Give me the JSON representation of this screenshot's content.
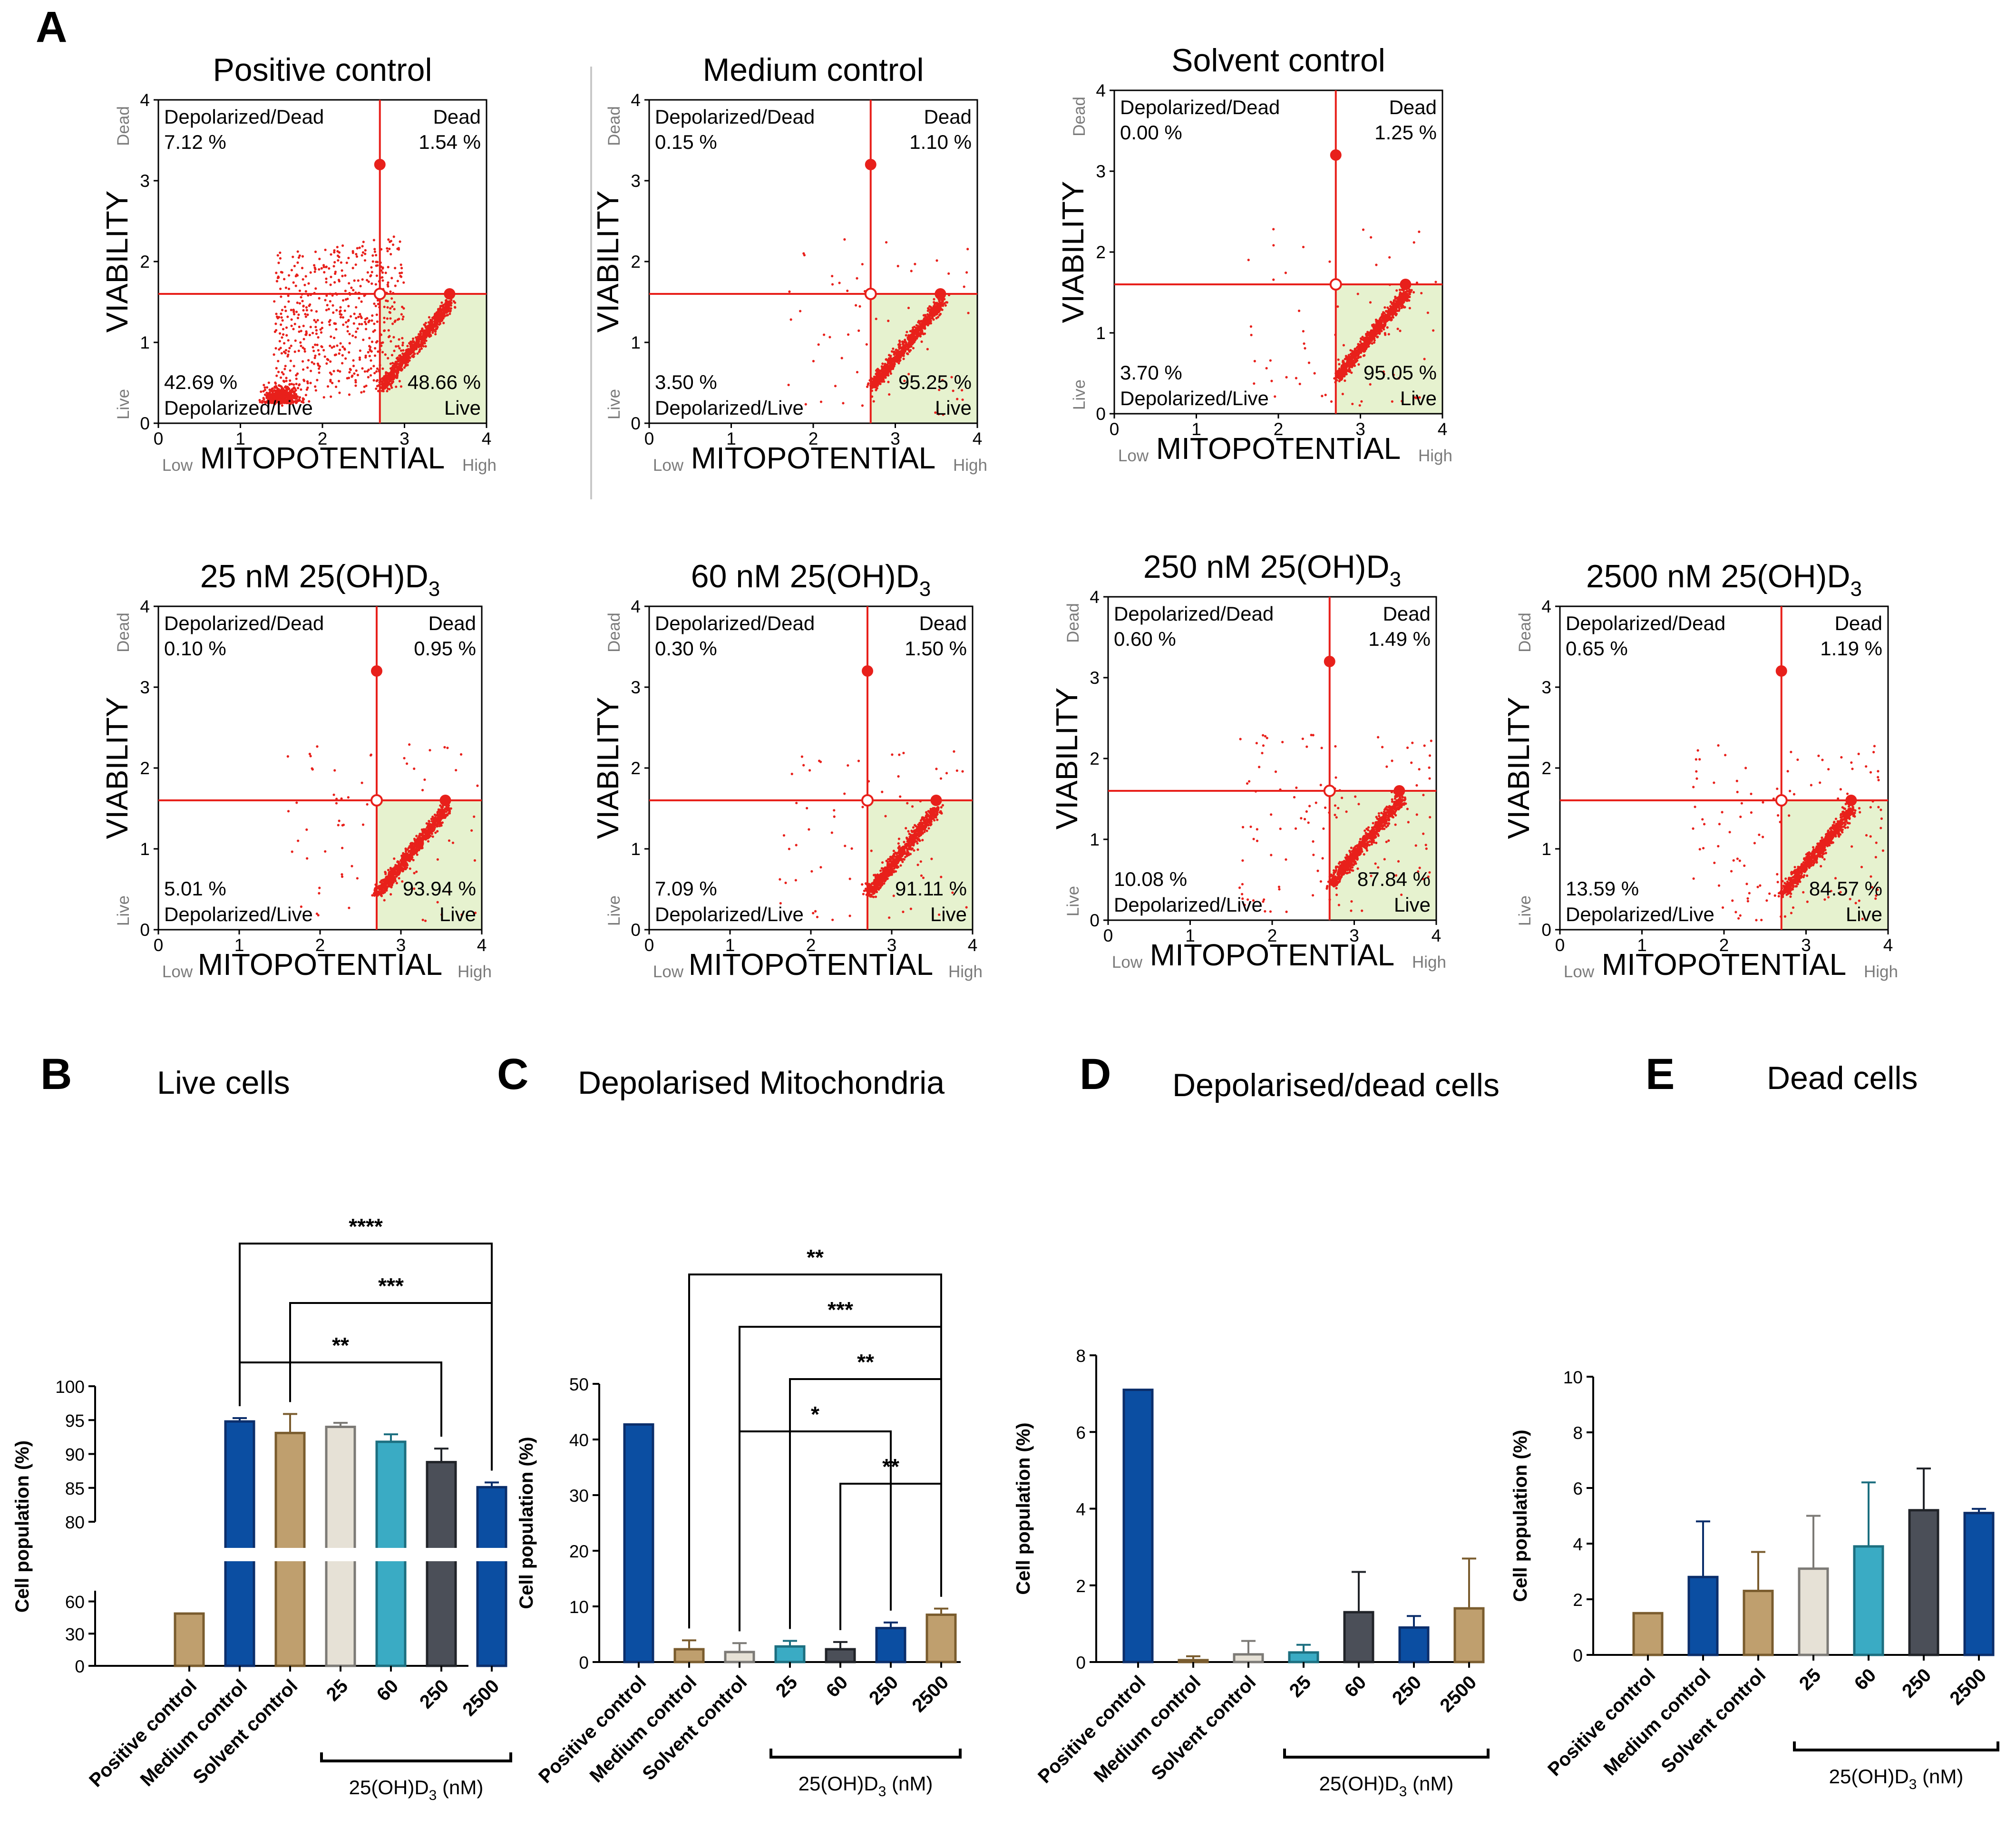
{
  "figure": {
    "panel_A": "A",
    "panel_B": "B",
    "panel_C": "C",
    "panel_D": "D",
    "panel_E": "E"
  },
  "colors": {
    "red": "#e8201b",
    "green": "#e6f2cf",
    "tan": "#bf9f6e",
    "blue": "#0b4ea2",
    "cream": "#e6e1d6",
    "cyan": "#3aabc4",
    "dark": "#4b4f58",
    "edge_brown": "#7a5c2e",
    "edge_blue": "#0b2e6b"
  },
  "chart_data": [
    {
      "type": "scatter",
      "title": "Positive control",
      "xlabel": "MITOPOTENTIAL",
      "ylabel": "VIABILITY",
      "xlim": [
        0,
        4
      ],
      "ylim": [
        0,
        4
      ],
      "x_low": "Low",
      "x_high": "High",
      "y_low": "Live",
      "y_high": "Dead",
      "xticks": [
        "0",
        "1",
        "2",
        "3",
        "4"
      ],
      "yticks": [
        "0",
        "1",
        "2",
        "3",
        "4"
      ],
      "quadrants": {
        "tl_name": "Depolarized/Dead",
        "tl_pct": "7.12 %",
        "tr_name": "Dead",
        "tr_pct": "1.54 %",
        "bl_name": "Depolarized/Live",
        "bl_pct": "42.69 %",
        "br_name": "Live",
        "br_pct": "48.66 %"
      },
      "gate": {
        "x": 2.7,
        "y": 1.6
      },
      "spread": "high"
    },
    {
      "type": "scatter",
      "title": "Medium control",
      "xlabel": "MITOPOTENTIAL",
      "ylabel": "VIABILITY",
      "xlim": [
        0,
        4
      ],
      "ylim": [
        0,
        4
      ],
      "x_low": "Low",
      "x_high": "High",
      "y_low": "Live",
      "y_high": "Dead",
      "xticks": [
        "0",
        "1",
        "2",
        "3",
        "4"
      ],
      "yticks": [
        "0",
        "1",
        "2",
        "3",
        "4"
      ],
      "quadrants": {
        "tl_name": "Depolarized/Dead",
        "tl_pct": "0.15 %",
        "tr_name": "Dead",
        "tr_pct": "1.10 %",
        "bl_name": "Depolarized/Live",
        "bl_pct": "3.50 %",
        "br_name": "Live",
        "br_pct": "95.25 %"
      },
      "gate": {
        "x": 2.7,
        "y": 1.6
      },
      "spread": "low"
    },
    {
      "type": "scatter",
      "title": "Solvent control",
      "xlabel": "MITOPOTENTIAL",
      "ylabel": "VIABILITY",
      "xlim": [
        0,
        4
      ],
      "ylim": [
        0,
        4
      ],
      "x_low": "Low",
      "x_high": "High",
      "y_low": "Live",
      "y_high": "Dead",
      "xticks": [
        "0",
        "1",
        "2",
        "3",
        "4"
      ],
      "yticks": [
        "0",
        "1",
        "2",
        "3",
        "4"
      ],
      "quadrants": {
        "tl_name": "Depolarized/Dead",
        "tl_pct": "0.00 %",
        "tr_name": "Dead",
        "tr_pct": "1.25 %",
        "bl_name": "Depolarized/Live",
        "bl_pct": "3.70 %",
        "br_name": "Live",
        "br_pct": "95.05 %"
      },
      "gate": {
        "x": 2.7,
        "y": 1.6
      },
      "spread": "low"
    },
    {
      "type": "scatter",
      "title": "25 nM 25(OH)D",
      "title_sub": "3",
      "xlabel": "MITOPOTENTIAL",
      "ylabel": "VIABILITY",
      "xlim": [
        0,
        4
      ],
      "ylim": [
        0,
        4
      ],
      "x_low": "Low",
      "x_high": "High",
      "y_low": "Live",
      "y_high": "Dead",
      "xticks": [
        "0",
        "1",
        "2",
        "3",
        "4"
      ],
      "yticks": [
        "0",
        "1",
        "2",
        "3",
        "4"
      ],
      "quadrants": {
        "tl_name": "Depolarized/Dead",
        "tl_pct": "0.10 %",
        "tr_name": "Dead",
        "tr_pct": "0.95 %",
        "bl_name": "Depolarized/Live",
        "bl_pct": "5.01 %",
        "br_name": "Live",
        "br_pct": "93.94 %"
      },
      "gate": {
        "x": 2.7,
        "y": 1.6
      },
      "spread": "low"
    },
    {
      "type": "scatter",
      "title": "60 nM 25(OH)D",
      "title_sub": "3",
      "xlabel": "MITOPOTENTIAL",
      "ylabel": "VIABILITY",
      "xlim": [
        0,
        4
      ],
      "ylim": [
        0,
        4
      ],
      "x_low": "Low",
      "x_high": "High",
      "y_low": "Live",
      "y_high": "Dead",
      "xticks": [
        "0",
        "1",
        "2",
        "3",
        "4"
      ],
      "yticks": [
        "0",
        "1",
        "2",
        "3",
        "4"
      ],
      "quadrants": {
        "tl_name": "Depolarized/Dead",
        "tl_pct": "0.30 %",
        "tr_name": "Dead",
        "tr_pct": "1.50 %",
        "bl_name": "Depolarized/Live",
        "bl_pct": "7.09 %",
        "br_name": "Live",
        "br_pct": "91.11 %"
      },
      "gate": {
        "x": 2.7,
        "y": 1.6
      },
      "spread": "low"
    },
    {
      "type": "scatter",
      "title": "250 nM 25(OH)D",
      "title_sub": "3",
      "xlabel": "MITOPOTENTIAL",
      "ylabel": "VIABILITY",
      "xlim": [
        0,
        4
      ],
      "ylim": [
        0,
        4
      ],
      "x_low": "Low",
      "x_high": "High",
      "y_low": "Live",
      "y_high": "Dead",
      "xticks": [
        "0",
        "1",
        "2",
        "3",
        "4"
      ],
      "yticks": [
        "0",
        "1",
        "2",
        "3",
        "4"
      ],
      "quadrants": {
        "tl_name": "Depolarized/Dead",
        "tl_pct": "0.60 %",
        "tr_name": "Dead",
        "tr_pct": "1.49 %",
        "bl_name": "Depolarized/Live",
        "bl_pct": "10.08 %",
        "br_name": "Live",
        "br_pct": "87.84 %"
      },
      "gate": {
        "x": 2.7,
        "y": 1.6
      },
      "spread": "mid"
    },
    {
      "type": "scatter",
      "title": "2500 nM 25(OH)D",
      "title_sub": "3",
      "xlabel": "MITOPOTENTIAL",
      "ylabel": "VIABILITY",
      "xlim": [
        0,
        4
      ],
      "ylim": [
        0,
        4
      ],
      "x_low": "Low",
      "x_high": "High",
      "y_low": "Live",
      "y_high": "Dead",
      "xticks": [
        "0",
        "1",
        "2",
        "3",
        "4"
      ],
      "yticks": [
        "0",
        "1",
        "2",
        "3",
        "4"
      ],
      "quadrants": {
        "tl_name": "Depolarized/Dead",
        "tl_pct": "0.65 %",
        "tr_name": "Dead",
        "tr_pct": "1.19 %",
        "bl_name": "Depolarized/Live",
        "bl_pct": "13.59 %",
        "br_name": "Live",
        "br_pct": "84.57 %"
      },
      "gate": {
        "x": 2.7,
        "y": 1.6
      },
      "spread": "mid"
    },
    {
      "type": "bar",
      "title": "Live cells",
      "ylabel": "Cell population (%)",
      "broken_axis": true,
      "lower_ylim": [
        0,
        70
      ],
      "lower_yticks": [
        0,
        30,
        60
      ],
      "upper_ylim": [
        80,
        100
      ],
      "upper_yticks": [
        80,
        85,
        90,
        95,
        100
      ],
      "categories": [
        "Positive control",
        "Medium control",
        "Solvent control",
        "25",
        "60",
        "250",
        "2500"
      ],
      "values": [
        48.7,
        94.8,
        93.1,
        94.0,
        91.8,
        88.8,
        85.1
      ],
      "errors": [
        0,
        0.5,
        2.8,
        0.6,
        1.1,
        2.0,
        0.7
      ],
      "group_label": "25(OH)D",
      "group_label_sub": "3",
      "group_label_unit": " (nM)",
      "significance": [
        {
          "from": 1,
          "to": 6,
          "label": "****"
        },
        {
          "from": 2,
          "to": 6,
          "label": "***"
        },
        {
          "from": 1,
          "to": 5,
          "label": "**"
        }
      ]
    },
    {
      "type": "bar",
      "title": "Depolarised Mitochondria",
      "ylabel": "Cell population (%)",
      "ylim": [
        0,
        50
      ],
      "yticks": [
        0,
        10,
        20,
        30,
        40,
        50
      ],
      "categories": [
        "Positive control",
        "Medium control",
        "Solvent control",
        "25",
        "60",
        "250",
        "2500"
      ],
      "values": [
        42.7,
        2.3,
        1.8,
        2.8,
        2.3,
        6.1,
        8.5
      ],
      "errors": [
        0,
        1.6,
        1.6,
        1.0,
        1.3,
        1.0,
        1.1
      ],
      "group_label": "25(OH)D",
      "group_label_sub": "3",
      "group_label_unit": " (nM)",
      "significance": [
        {
          "from": 1,
          "to": 6,
          "label": "**"
        },
        {
          "from": 2,
          "to": 6,
          "label": "***"
        },
        {
          "from": 3,
          "to": 6,
          "label": "**"
        },
        {
          "from": 2,
          "to": 5,
          "label": "*"
        },
        {
          "from": 4,
          "to": 6,
          "label": "**"
        }
      ]
    },
    {
      "type": "bar",
      "title": "Depolarised/dead cells",
      "ylabel": "Cell population (%)",
      "ylim": [
        0,
        8
      ],
      "yticks": [
        0,
        2,
        4,
        6,
        8
      ],
      "categories": [
        "Positive control",
        "Medium control",
        "Solvent control",
        "25",
        "60",
        "250",
        "2500"
      ],
      "values": [
        7.1,
        0.05,
        0.2,
        0.25,
        1.3,
        0.9,
        1.4
      ],
      "errors": [
        0,
        0.1,
        0.35,
        0.2,
        1.05,
        0.3,
        1.3
      ],
      "group_label": "25(OH)D",
      "group_label_sub": "3",
      "group_label_unit": " (nM)",
      "significance": []
    },
    {
      "type": "bar",
      "title": "Dead cells",
      "ylabel": "Cell population (%)",
      "ylim": [
        0,
        10
      ],
      "yticks": [
        0,
        2,
        4,
        6,
        8,
        10
      ],
      "categories": [
        "Positive control",
        "Medium control",
        "Solvent control",
        "25",
        "60",
        "250",
        "2500"
      ],
      "values": [
        1.5,
        2.8,
        2.3,
        3.1,
        3.9,
        5.2,
        5.1
      ],
      "errors": [
        0,
        2.0,
        1.4,
        1.9,
        2.3,
        1.5,
        0.15
      ],
      "group_label": "25(OH)D",
      "group_label_sub": "3",
      "group_label_unit": " (nM)",
      "significance": []
    }
  ]
}
